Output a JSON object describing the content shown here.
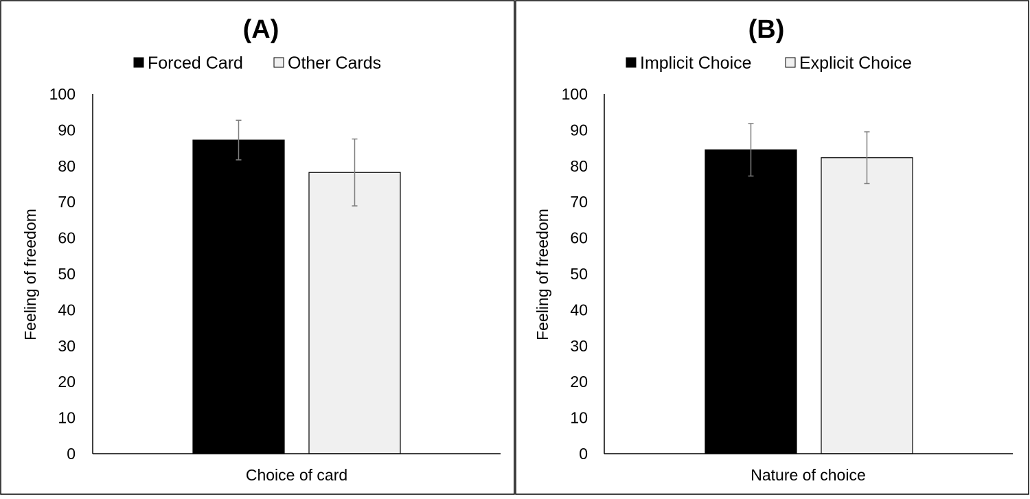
{
  "chart_data": [
    {
      "type": "bar",
      "title": "(A)",
      "categories": [
        ""
      ],
      "series": [
        {
          "name": "Forced Card",
          "values": [
            87.2
          ],
          "error": [
            5.5
          ],
          "color": "#000000"
        },
        {
          "name": "Other Cards",
          "values": [
            78.2
          ],
          "error": [
            9.3
          ],
          "color": "#f0f0f0"
        }
      ],
      "xlabel": "Choice of card",
      "ylabel": "Feeling of freedom",
      "ylim": [
        0,
        100
      ],
      "yticks": [
        0,
        10,
        20,
        30,
        40,
        50,
        60,
        70,
        80,
        90,
        100
      ],
      "grid": false,
      "legend_position": "top"
    },
    {
      "type": "bar",
      "title": "(B)",
      "categories": [
        ""
      ],
      "series": [
        {
          "name": "Implicit Choice",
          "values": [
            84.5
          ],
          "error": [
            7.3
          ],
          "color": "#000000"
        },
        {
          "name": "Explicit Choice",
          "values": [
            82.3
          ],
          "error": [
            7.2
          ],
          "color": "#f0f0f0"
        }
      ],
      "xlabel": "Nature of choice",
      "ylabel": "Feeling of freedom",
      "ylim": [
        0,
        100
      ],
      "yticks": [
        0,
        10,
        20,
        30,
        40,
        50,
        60,
        70,
        80,
        90,
        100
      ],
      "grid": false,
      "legend_position": "top"
    }
  ]
}
